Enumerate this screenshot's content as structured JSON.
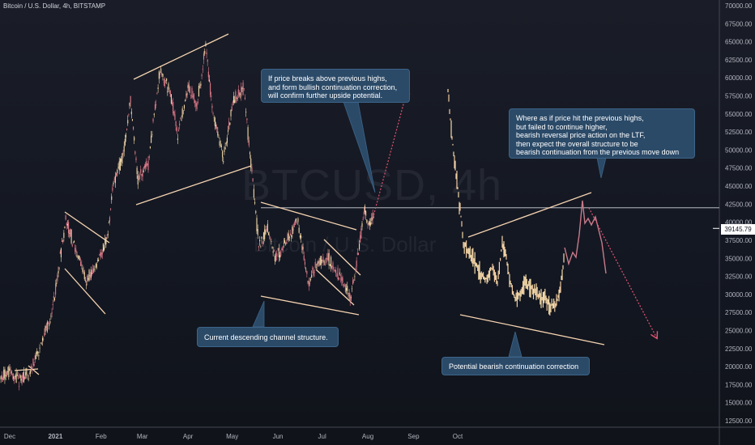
{
  "header": {
    "title": "Bitcoin / U.S. Dollar, 4h, BITSTAMP"
  },
  "watermark": {
    "symbol": "BTCUSD, 4h",
    "name": "Bitcoin / U.S. Dollar"
  },
  "callouts": {
    "upside": "If price breaks above previous highs,\nand form bullish continuation correction,\nwill confirm further upside potential.",
    "bearish": "Where as if price hit the previous highs,\nbut failed to continue higher,\nbearish reversal price action on the LTF,\nthen expect the overall structure to be\nbearish continuation from the previous move down",
    "channel": "Current descending channel structure.",
    "correction": "Potential bearish continuation correction"
  },
  "current_price": "39145.79",
  "colors": {
    "background": "#131722",
    "bull_candle": "#f4d9a8",
    "bear_candle": "#e07a8a",
    "trendline": "#f5d3b0",
    "projection": "#e05570",
    "callout_fill": "#2b4a68"
  },
  "chart_data": {
    "type": "line",
    "title": "Bitcoin / U.S. Dollar, 4h, BITSTAMP",
    "xlabel": "",
    "ylabel": "",
    "ylim": [
      11000,
      70000
    ],
    "y_ticks": [
      12500,
      15000,
      17500,
      20000,
      22500,
      25000,
      27500,
      30000,
      32500,
      35000,
      37500,
      40000,
      42500,
      45000,
      47500,
      50000,
      52500,
      55000,
      57500,
      60000,
      62500,
      65000,
      67500,
      70000
    ],
    "x_ticks": [
      "Dec",
      "2021",
      "Feb",
      "Mar",
      "Apr",
      "May",
      "Jun",
      "Jul",
      "Aug",
      "Sep",
      "Oct"
    ],
    "horizontal_level": 42000,
    "series": [
      {
        "values": [
          [
            "2020-11-25",
            18500
          ],
          [
            "2020-12-01",
            19300
          ],
          [
            "2020-12-08",
            18000
          ],
          [
            "2020-12-15",
            19500
          ],
          [
            "2020-12-22",
            23000
          ],
          [
            "2020-12-29",
            27000
          ],
          [
            "2021-01-03",
            33000
          ],
          [
            "2021-01-08",
            40500
          ],
          [
            "2021-01-15",
            36000
          ],
          [
            "2021-01-22",
            32000
          ],
          [
            "2021-01-29",
            34000
          ],
          [
            "2021-02-05",
            38000
          ],
          [
            "2021-02-10",
            46000
          ],
          [
            "2021-02-16",
            49000
          ],
          [
            "2021-02-21",
            57000
          ],
          [
            "2021-02-26",
            46000
          ],
          [
            "2021-03-05",
            48000
          ],
          [
            "2021-03-13",
            61000
          ],
          [
            "2021-03-20",
            58000
          ],
          [
            "2021-03-25",
            52000
          ],
          [
            "2021-04-01",
            59000
          ],
          [
            "2021-04-07",
            56000
          ],
          [
            "2021-04-13",
            64500
          ],
          [
            "2021-04-18",
            55000
          ],
          [
            "2021-04-25",
            49000
          ],
          [
            "2021-05-02",
            57000
          ],
          [
            "2021-05-09",
            58500
          ],
          [
            "2021-05-13",
            49500
          ],
          [
            "2021-05-19",
            37000
          ],
          [
            "2021-05-25",
            39000
          ],
          [
            "2021-05-30",
            35000
          ],
          [
            "2021-06-05",
            36500
          ],
          [
            "2021-06-14",
            40500
          ],
          [
            "2021-06-22",
            31500
          ],
          [
            "2021-06-27",
            34500
          ],
          [
            "2021-07-05",
            35000
          ],
          [
            "2021-07-13",
            32500
          ],
          [
            "2021-07-20",
            29500
          ],
          [
            "2021-07-25",
            35000
          ],
          [
            "2021-07-30",
            42000
          ],
          [
            "2021-08-01",
            39500
          ],
          [
            "2021-08-05",
            41000
          ]
        ]
      }
    ],
    "projections": [
      {
        "from": [
          "2021-08-05",
          41000
        ],
        "to": [
          "2021-08-28",
          58500
        ]
      },
      {
        "from": [
          "2021-12-29",
          42000
        ],
        "to": [
          "2022-02-13",
          24000
        ]
      }
    ]
  }
}
